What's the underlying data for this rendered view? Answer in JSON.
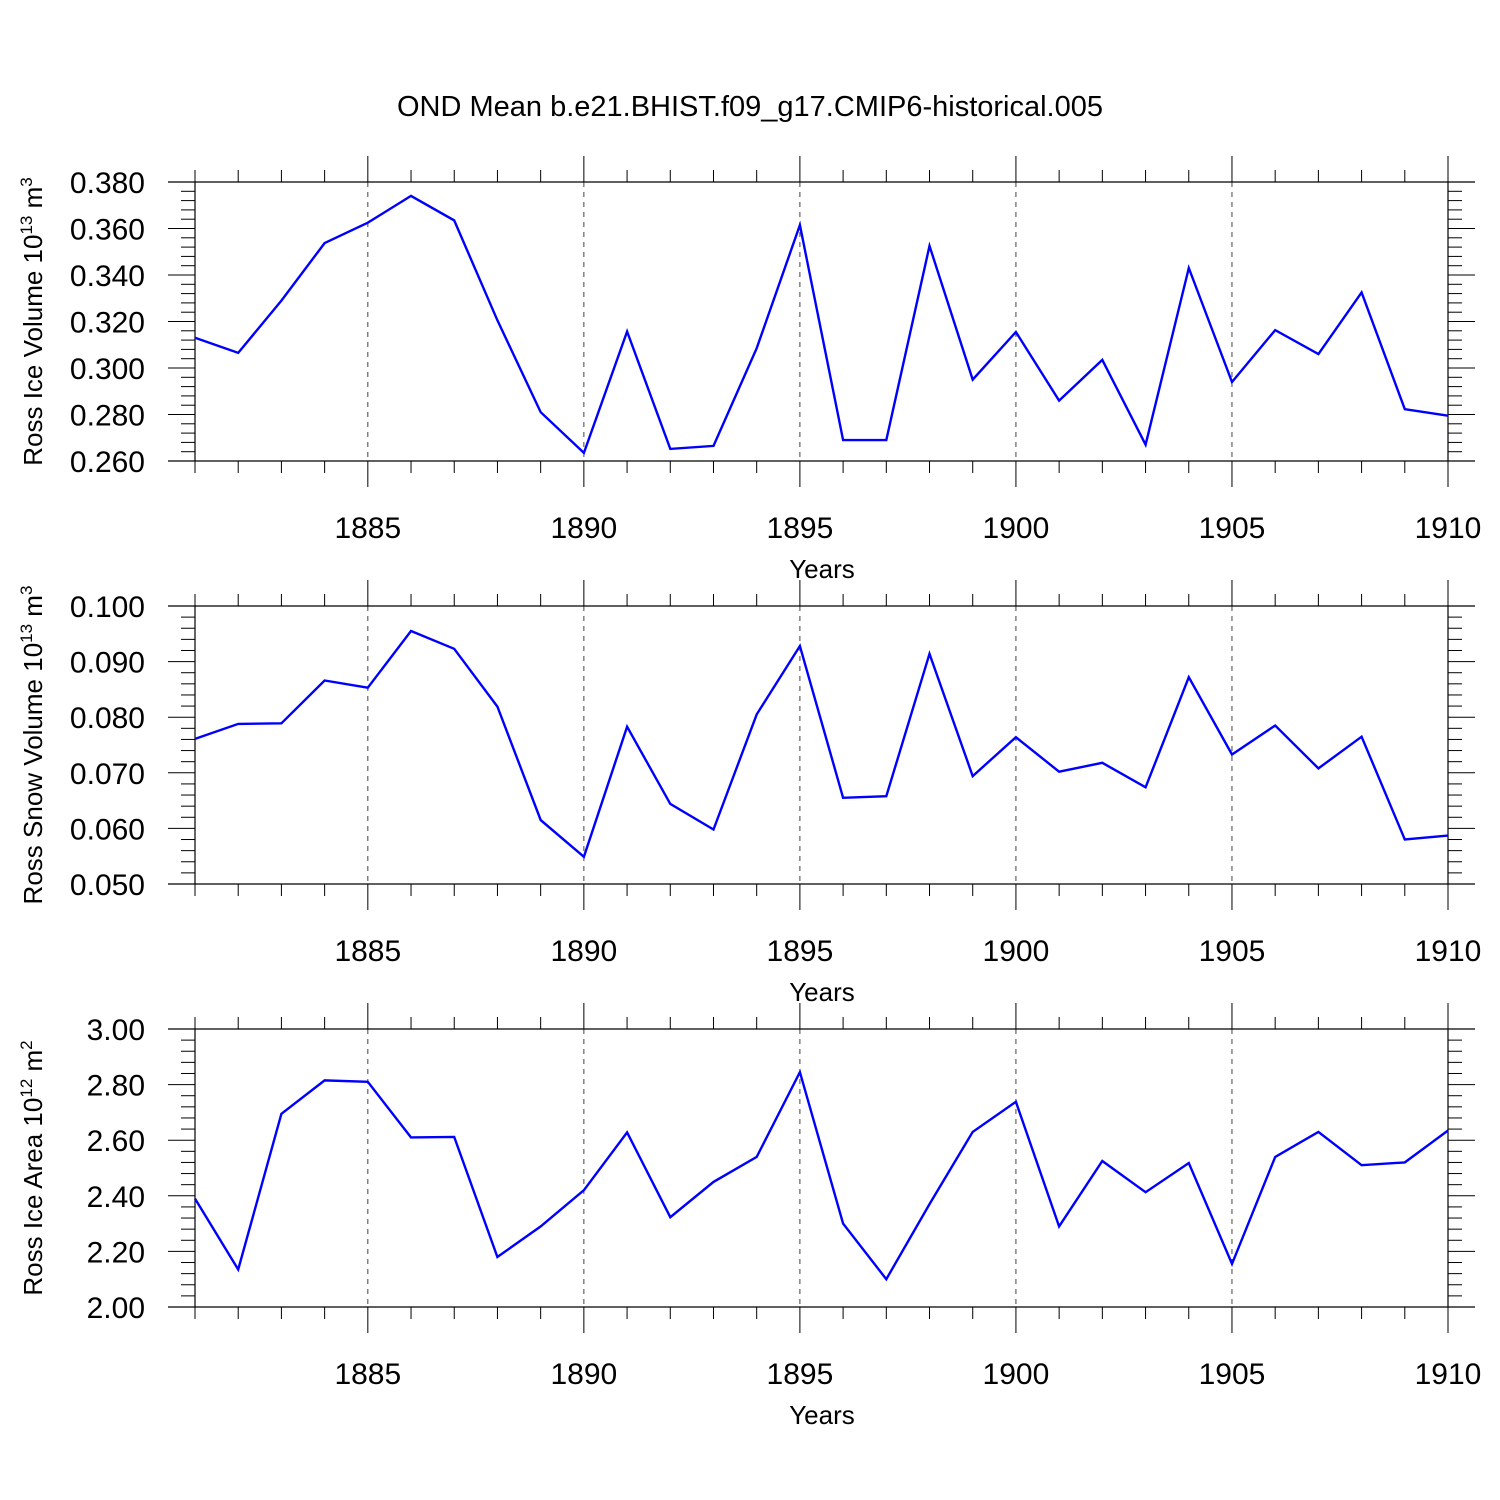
{
  "title": "OND Mean b.e21.BHIST.f09_g17.CMIP6-historical.005",
  "colors": {
    "line": "#0000ff",
    "axis": "#000000",
    "grid": "#444444"
  },
  "chart_data": [
    {
      "type": "line",
      "ylabel": {
        "text": "Ross Ice Volume 10",
        "exp": "13",
        "unit": " m",
        "unit_exp": "3"
      },
      "xlabel": "Years",
      "xlim": [
        1881,
        1910
      ],
      "ylim": [
        0.26,
        0.38
      ],
      "yticks": [
        0.26,
        0.28,
        0.3,
        0.32,
        0.34,
        0.36,
        0.38
      ],
      "ytick_labels": [
        "0.260",
        "0.280",
        "0.300",
        "0.320",
        "0.340",
        "0.360",
        "0.380"
      ],
      "xticks": [
        1885,
        1890,
        1895,
        1900,
        1905,
        1910
      ],
      "xtick_labels": [
        "1885",
        "1890",
        "1895",
        "1900",
        "1905",
        "1910"
      ],
      "grid": "vertical dashed at major x ticks",
      "x": [
        1881,
        1882,
        1883,
        1884,
        1885,
        1886,
        1887,
        1888,
        1889,
        1890,
        1891,
        1892,
        1893,
        1894,
        1895,
        1896,
        1897,
        1898,
        1899,
        1900,
        1901,
        1902,
        1903,
        1904,
        1905,
        1906,
        1907,
        1908,
        1909,
        1910
      ],
      "series": [
        {
          "values": [
            0.313,
            0.3065,
            0.329,
            0.3537,
            0.3625,
            0.374,
            0.3635,
            0.3205,
            0.281,
            0.2635,
            0.3157,
            0.2652,
            0.2665,
            0.3085,
            0.3615,
            0.269,
            0.269,
            0.3525,
            0.295,
            0.3155,
            0.286,
            0.3035,
            0.267,
            0.343,
            0.294,
            0.3163,
            0.306,
            0.3325,
            0.2823,
            0.2795
          ]
        }
      ]
    },
    {
      "type": "line",
      "ylabel": {
        "text": "Ross Snow Volume 10",
        "exp": "13",
        "unit": " m",
        "unit_exp": "3"
      },
      "xlabel": "Years",
      "xlim": [
        1881,
        1910
      ],
      "ylim": [
        0.05,
        0.1
      ],
      "yticks": [
        0.05,
        0.06,
        0.07,
        0.08,
        0.09,
        0.1
      ],
      "ytick_labels": [
        "0.050",
        "0.060",
        "0.070",
        "0.080",
        "0.090",
        "0.100"
      ],
      "xticks": [
        1885,
        1890,
        1895,
        1900,
        1905,
        1910
      ],
      "xtick_labels": [
        "1885",
        "1890",
        "1895",
        "1900",
        "1905",
        "1910"
      ],
      "grid": "vertical dashed at major x ticks",
      "x": [
        1881,
        1882,
        1883,
        1884,
        1885,
        1886,
        1887,
        1888,
        1889,
        1890,
        1891,
        1892,
        1893,
        1894,
        1895,
        1896,
        1897,
        1898,
        1899,
        1900,
        1901,
        1902,
        1903,
        1904,
        1905,
        1906,
        1907,
        1908,
        1909,
        1910
      ],
      "series": [
        {
          "values": [
            0.0761,
            0.0788,
            0.0789,
            0.0866,
            0.0853,
            0.0955,
            0.0923,
            0.0819,
            0.0615,
            0.0549,
            0.0783,
            0.0644,
            0.0598,
            0.0805,
            0.0928,
            0.0655,
            0.0658,
            0.0914,
            0.0694,
            0.0764,
            0.0702,
            0.0718,
            0.0674,
            0.0872,
            0.0733,
            0.0785,
            0.0708,
            0.0765,
            0.058,
            0.0587
          ]
        }
      ]
    },
    {
      "type": "line",
      "ylabel": {
        "text": "Ross Ice Area 10",
        "exp": "12",
        "unit": " m",
        "unit_exp": "2"
      },
      "xlabel": "Years",
      "xlim": [
        1881,
        1910
      ],
      "ylim": [
        2.0,
        3.0
      ],
      "yticks": [
        2.0,
        2.2,
        2.4,
        2.6,
        2.8,
        3.0
      ],
      "ytick_labels": [
        "2.00",
        "2.20",
        "2.40",
        "2.60",
        "2.80",
        "3.00"
      ],
      "xticks": [
        1885,
        1890,
        1895,
        1900,
        1905,
        1910
      ],
      "xtick_labels": [
        "1885",
        "1890",
        "1895",
        "1900",
        "1905",
        "1910"
      ],
      "grid": "vertical dashed at major x ticks",
      "x": [
        1881,
        1882,
        1883,
        1884,
        1885,
        1886,
        1887,
        1888,
        1889,
        1890,
        1891,
        1892,
        1893,
        1894,
        1895,
        1896,
        1897,
        1898,
        1899,
        1900,
        1901,
        1902,
        1903,
        1904,
        1905,
        1906,
        1907,
        1908,
        1909,
        1910
      ],
      "series": [
        {
          "values": [
            2.39,
            2.135,
            2.695,
            2.815,
            2.81,
            2.61,
            2.612,
            2.18,
            2.29,
            2.42,
            2.628,
            2.323,
            2.45,
            2.54,
            2.845,
            2.3,
            2.1,
            2.37,
            2.63,
            2.738,
            2.29,
            2.525,
            2.413,
            2.518,
            2.155,
            2.54,
            2.63,
            2.51,
            2.52,
            2.635
          ]
        }
      ]
    }
  ]
}
